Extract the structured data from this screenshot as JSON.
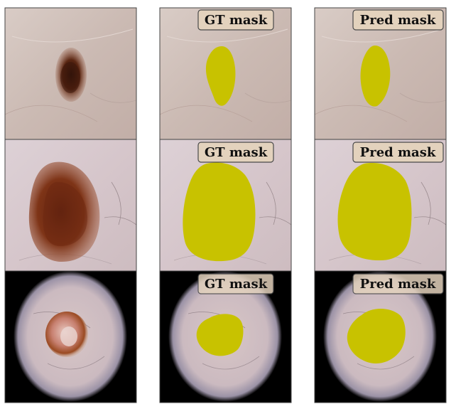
{
  "figure": {
    "columns": [
      {
        "key": "input",
        "label": ""
      },
      {
        "key": "gt",
        "label": "GT mask"
      },
      {
        "key": "pred",
        "label": "Pred mask"
      }
    ],
    "rows": [
      {
        "key": "lesion-1",
        "background": "skin",
        "lesion": "small-dark-mole"
      },
      {
        "key": "lesion-2",
        "background": "skin",
        "lesion": "large-brown-mole"
      },
      {
        "key": "lesion-3",
        "background": "dermoscope-vignette",
        "lesion": "pink-red-nodule"
      }
    ],
    "colors": {
      "mask": "#c8c200",
      "skin_light": "#d8c7c2",
      "skin_mid": "#c4b0aa",
      "lesion_dark": "#3a1a10",
      "lesion_brown": "#7a3418",
      "vignette": "#000000",
      "badge_fill": "#e3d2bd"
    }
  }
}
